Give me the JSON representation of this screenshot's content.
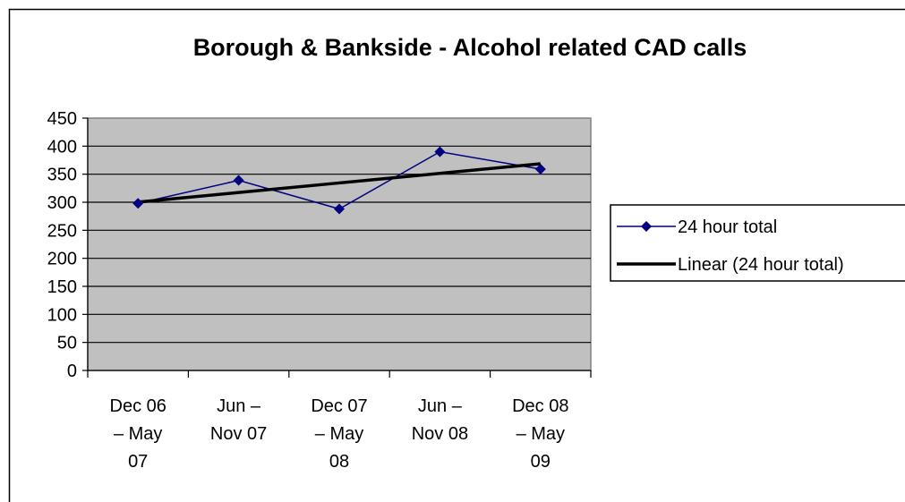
{
  "chart_data": {
    "type": "line",
    "title": "Borough & Bankside - Alcohol related CAD calls",
    "categories": [
      [
        "Dec 06",
        "– May",
        "07"
      ],
      [
        "Jun –",
        "Nov 07"
      ],
      [
        "Dec 07",
        "– May",
        "08"
      ],
      [
        "Jun –",
        "Nov 08"
      ],
      [
        "Dec 08",
        "– May",
        "09"
      ]
    ],
    "series": [
      {
        "name": "24 hour total",
        "values": [
          298,
          339,
          288,
          390,
          359
        ],
        "color": "#000080",
        "marker": "diamond"
      },
      {
        "name": "Linear (24 hour total)",
        "values": [
          300.2,
          317.3,
          334.4,
          351.5,
          368.6
        ],
        "color": "#000000",
        "trendline": true
      }
    ],
    "ylim": [
      0,
      450
    ],
    "yticks": [
      "0",
      "50",
      "100",
      "150",
      "200",
      "250",
      "300",
      "350",
      "400",
      "450"
    ],
    "plot_background": "#c0c0c0",
    "grid": true,
    "legend_position": "right"
  }
}
